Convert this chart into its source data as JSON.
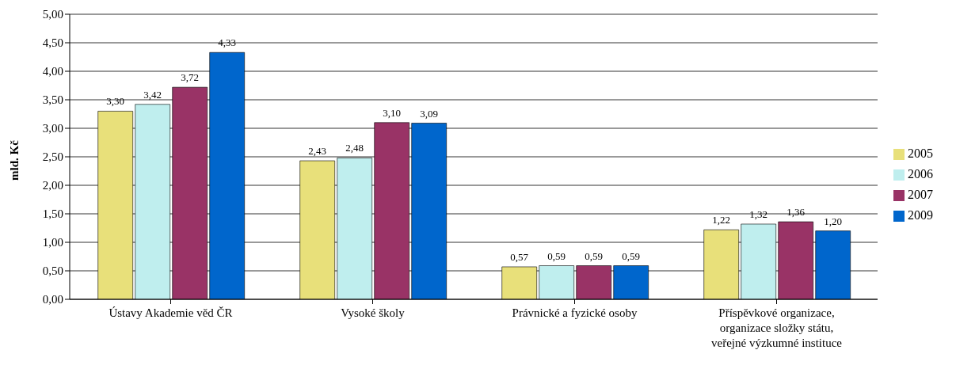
{
  "chart_data": {
    "type": "bar",
    "ylabel": "mld. Kč",
    "categories": [
      "Ústavy Akademie věd ČR",
      "Vysoké školy",
      "Právnické a fyzické osoby",
      "Příspěvkové organizace, organizace složky státu, veřejné výzkumné instituce"
    ],
    "series": [
      {
        "name": "2005",
        "color": "#e8e07a",
        "values": [
          3.3,
          2.43,
          0.57,
          1.22
        ],
        "value_labels": [
          "3,30",
          "2,43",
          "0,57",
          "1,22"
        ]
      },
      {
        "name": "2006",
        "color": "#bfeeee",
        "values": [
          3.42,
          2.48,
          0.59,
          1.32
        ],
        "value_labels": [
          "3,42",
          "2,48",
          "0,59",
          "1,32"
        ]
      },
      {
        "name": "2007",
        "color": "#993366",
        "values": [
          3.72,
          3.1,
          0.59,
          1.36
        ],
        "value_labels": [
          "3,72",
          "3,10",
          "0,59",
          "1,36"
        ]
      },
      {
        "name": "2009",
        "color": "#0066cc",
        "values": [
          4.33,
          3.09,
          0.59,
          1.2
        ],
        "value_labels": [
          "4,33",
          "3,09",
          "0,59",
          "1,20"
        ]
      }
    ],
    "ylim": [
      0,
      5
    ],
    "yticks": [
      {
        "value": 0,
        "label": "0,00"
      },
      {
        "value": 0.5,
        "label": "0,50"
      },
      {
        "value": 1,
        "label": "1,00"
      },
      {
        "value": 1.5,
        "label": "1,50"
      },
      {
        "value": 2,
        "label": "2,00"
      },
      {
        "value": 2.5,
        "label": "2,50"
      },
      {
        "value": 3,
        "label": "3,00"
      },
      {
        "value": 3.5,
        "label": "3,50"
      },
      {
        "value": 4,
        "label": "4,00"
      },
      {
        "value": 4.5,
        "label": "4,50"
      },
      {
        "value": 5,
        "label": "5,00"
      }
    ],
    "grid": "y",
    "legend": "right"
  }
}
